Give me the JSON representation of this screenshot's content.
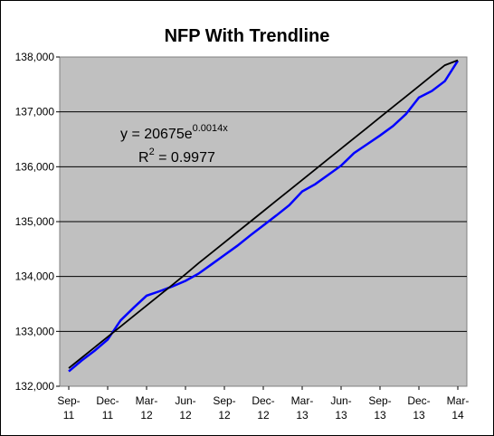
{
  "chart_data": {
    "type": "line",
    "title": "NFP With Trendline",
    "xlabel": "",
    "ylabel": "",
    "ylim": [
      132000,
      138000
    ],
    "y_ticks": [
      132000,
      133000,
      134000,
      135000,
      136000,
      137000,
      138000
    ],
    "y_tick_labels": [
      "132,000",
      "133,000",
      "134,000",
      "135,000",
      "136,000",
      "137,000",
      "138,000"
    ],
    "x_tick_labels": [
      [
        "Sep-",
        "11"
      ],
      [
        "Dec-",
        "11"
      ],
      [
        "Mar-",
        "12"
      ],
      [
        "Jun-",
        "12"
      ],
      [
        "Sep-",
        "12"
      ],
      [
        "Dec-",
        "12"
      ],
      [
        "Mar-",
        "13"
      ],
      [
        "Jun-",
        "13"
      ],
      [
        "Sep-",
        "13"
      ],
      [
        "Dec-",
        "13"
      ],
      [
        "Mar-",
        "14"
      ]
    ],
    "grid": true,
    "background_color": "#c0c0c0",
    "annotation": {
      "equation_prefix": "y = 20675e",
      "equation_exponent": "0.0014x",
      "r2_prefix": "R",
      "r2_exponent": "2",
      "r2_value": " = 0.9977"
    },
    "series": [
      {
        "color": "#0000ff",
        "x": [
          "Sep-11",
          "Oct-11",
          "Nov-11",
          "Dec-11",
          "Jan-12",
          "Feb-12",
          "Mar-12",
          "Apr-12",
          "May-12",
          "Jun-12",
          "Jul-12",
          "Aug-12",
          "Sep-12",
          "Oct-12",
          "Nov-12",
          "Dec-12",
          "Jan-13",
          "Feb-13",
          "Mar-13",
          "Apr-13",
          "May-13",
          "Jun-13",
          "Jul-13",
          "Aug-13",
          "Sep-13",
          "Oct-13",
          "Nov-13",
          "Dec-13",
          "Jan-14",
          "Feb-14",
          "Mar-14"
        ],
        "values": [
          132270,
          132470,
          132650,
          132850,
          133200,
          133430,
          133650,
          133730,
          133820,
          133920,
          134050,
          134220,
          134390,
          134560,
          134750,
          134930,
          135110,
          135300,
          135550,
          135680,
          135850,
          136020,
          136250,
          136410,
          136570,
          136740,
          136960,
          137260,
          137380,
          137560,
          137930
        ]
      },
      {
        "color": "#000000",
        "x": [
          "Sep-11",
          "Oct-11",
          "Nov-11",
          "Dec-11",
          "Jan-12",
          "Feb-12",
          "Mar-12",
          "Apr-12",
          "May-12",
          "Jun-12",
          "Jul-12",
          "Aug-12",
          "Sep-12",
          "Oct-12",
          "Nov-12",
          "Dec-12",
          "Jan-13",
          "Feb-13",
          "Mar-13",
          "Apr-13",
          "May-13",
          "Jun-13",
          "Jul-13",
          "Aug-13",
          "Sep-13",
          "Oct-13",
          "Nov-13",
          "Dec-13",
          "Jan-14",
          "Feb-14",
          "Mar-14"
        ],
        "values": [
          132330,
          132520,
          132710,
          132900,
          133090,
          133280,
          133470,
          133660,
          133850,
          134040,
          134240,
          134430,
          134620,
          134810,
          135000,
          135190,
          135380,
          135570,
          135760,
          135950,
          136140,
          136330,
          136520,
          136710,
          136900,
          137090,
          137280,
          137470,
          137660,
          137850,
          137940
        ]
      }
    ]
  }
}
